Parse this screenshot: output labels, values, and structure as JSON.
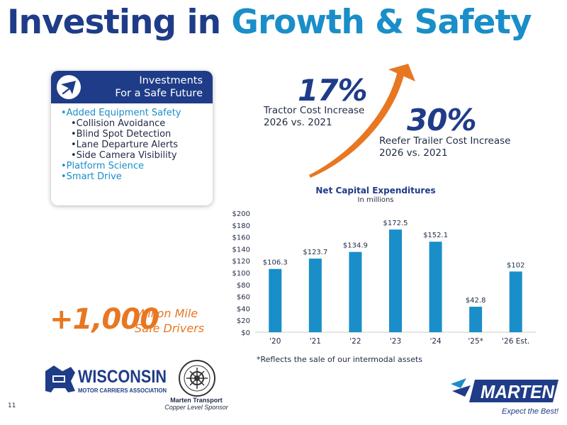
{
  "title": {
    "part1": "Investing in ",
    "part2": "Growth & Safety"
  },
  "investments": {
    "heading_line1": "Investments",
    "heading_line2": "For a Safe Future",
    "items": [
      "Added Equipment Safety",
      "Collision Avoidance",
      "Blind Spot Detection",
      "Lane Departure Alerts",
      "Side Camera Visibility",
      "Platform Science",
      "Smart Drive"
    ]
  },
  "stats": {
    "tractor": {
      "value": "17%",
      "line1": "Tractor Cost Increase",
      "line2": "2026 vs. 2021"
    },
    "reefer": {
      "value": "30%",
      "line1": "Reefer Trailer Cost Increase",
      "line2": "2026 vs. 2021"
    }
  },
  "safe_drivers": {
    "value": "+1,000",
    "line1": "Million Mile",
    "line2": "Safe Drivers"
  },
  "chart_data": {
    "type": "bar",
    "title": "Net Capital Expenditures",
    "subtitle": "In millions",
    "categories": [
      "'20",
      "'21",
      "'22",
      "'23",
      "'24",
      "'25*",
      "'26 Est."
    ],
    "values": [
      106.3,
      123.7,
      134.9,
      172.5,
      152.1,
      42.8,
      102
    ],
    "data_labels": [
      "$106.3",
      "$123.7",
      "$134.9",
      "$172.5",
      "$152.1",
      "$42.8",
      "$102"
    ],
    "ylim": [
      0,
      200
    ],
    "yticks": [
      0,
      20,
      40,
      60,
      80,
      100,
      120,
      140,
      160,
      180,
      200
    ],
    "ytick_labels": [
      "$0",
      "$20",
      "$40",
      "$60",
      "$80",
      "$100",
      "$120",
      "$140",
      "$160",
      "$180",
      "$200"
    ],
    "grid": false,
    "color": "#1a8ec8",
    "footnote": "*Reflects the sale of our intermodal assets"
  },
  "logos": {
    "wmca_line1": "WISCONSIN",
    "wmca_line2": "MOTOR CARRIERS ASSOCIATION",
    "tat_caption_line1": "Marten Transport",
    "tat_caption_line2": "Copper Level Sponsor",
    "marten": "MARTEN",
    "marten_tagline": "Expect the Best!"
  },
  "page_number": "11",
  "colors": {
    "navy": "#1f3c88",
    "blue": "#1a8ec8",
    "orange": "#e87722"
  }
}
